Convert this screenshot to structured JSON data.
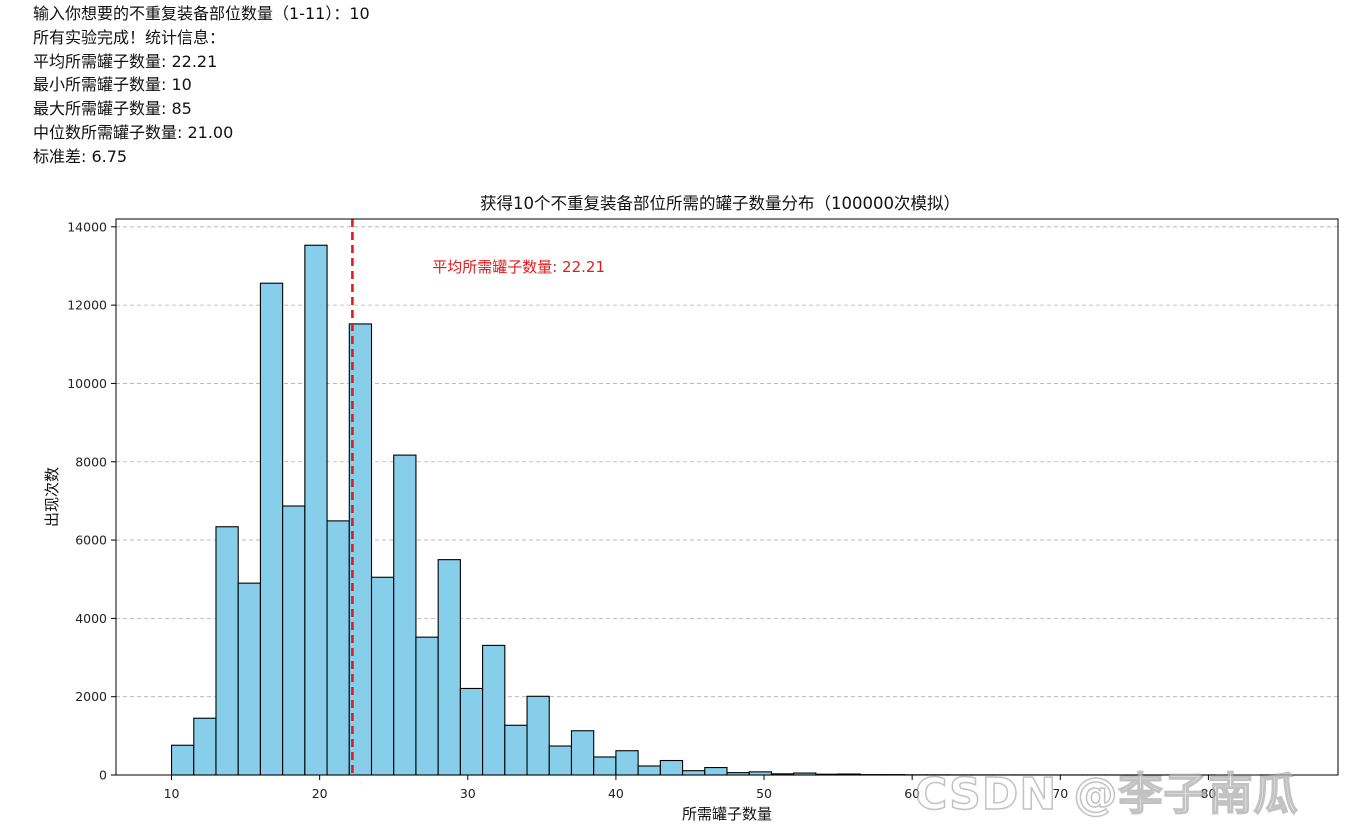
{
  "console": {
    "lines": [
      "输入你想要的不重复装备部位数量（1-11）：10",
      "所有实验完成！统计信息：",
      "平均所需罐子数量: 22.21",
      "最小所需罐子数量: 10",
      "最大所需罐子数量: 85",
      "中位数所需罐子数量: 21.00",
      "标准差: 6.75"
    ]
  },
  "chart_data": {
    "type": "bar",
    "title": "获得10个不重复装备部位所需的罐子数量分布（100000次模拟）",
    "xlabel": "所需罐子数量",
    "ylabel": "出现次数",
    "xlim": [
      6.25,
      88.75
    ],
    "ylim": [
      0,
      14200
    ],
    "xticks": [
      10,
      20,
      30,
      40,
      50,
      60,
      70,
      80
    ],
    "yticks": [
      0,
      2000,
      4000,
      6000,
      8000,
      10000,
      12000,
      14000
    ],
    "bin_edges": [
      10,
      11.5,
      13,
      14.5,
      16,
      17.5,
      19,
      20.5,
      22,
      23.5,
      25,
      26.5,
      28,
      29.5,
      31,
      32.5,
      34,
      35.5,
      37,
      38.5,
      40,
      41.5,
      43,
      44.5,
      46,
      47.5,
      49,
      50.5,
      52,
      53.5,
      55,
      56.5,
      58,
      59.5,
      61,
      62.5,
      64,
      65.5,
      67,
      68.5,
      70,
      71.5,
      73,
      74.5,
      76,
      77.5,
      79,
      80.5,
      82,
      83.5,
      85
    ],
    "values": [
      760,
      1450,
      6340,
      4900,
      12560,
      6870,
      13530,
      6490,
      11520,
      5050,
      8170,
      3520,
      5500,
      2210,
      3310,
      1270,
      2010,
      740,
      1130,
      460,
      620,
      230,
      370,
      110,
      190,
      60,
      80,
      30,
      50,
      20,
      25,
      10,
      10,
      5,
      5,
      3,
      3,
      2,
      2,
      1,
      1,
      1,
      1,
      1,
      1,
      0,
      1,
      0,
      0,
      1
    ],
    "bar_color": "#87CEEB",
    "edge_color": "#000000",
    "grid": "y-dashed",
    "mean_line": {
      "x": 22.21,
      "color": "#e31a1c",
      "label": "平均所需罐子数量: 22.21",
      "label_x": 27.6,
      "label_y": 12850
    }
  },
  "watermark": {
    "text": "CSDN @李子南瓜"
  }
}
